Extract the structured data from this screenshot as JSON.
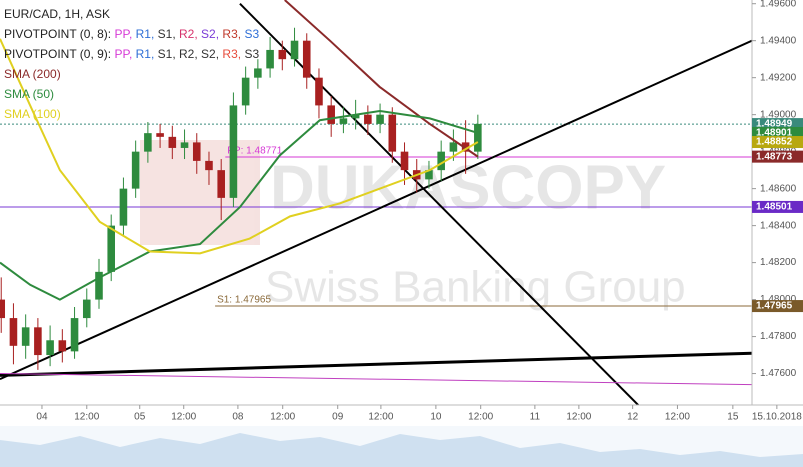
{
  "chart_data": {
    "type": "candlestick",
    "title": "EUR/CAD, 1H, ASK",
    "pivot_legends": [
      {
        "label": "PIVOTPOINT (0, 8):",
        "items": [
          {
            "text": "PP,",
            "color": "#d63ad6"
          },
          {
            "text": "R1,",
            "color": "#2f6fd6"
          },
          {
            "text": "S1,",
            "color": "#333333"
          },
          {
            "text": "R2,",
            "color": "#d6336c"
          },
          {
            "text": "S2,",
            "color": "#7a3ad6"
          },
          {
            "text": "R3,",
            "color": "#c0392b"
          },
          {
            "text": "S3",
            "color": "#2f6fd6"
          }
        ]
      },
      {
        "label": "PIVOTPOINT (0, 9):",
        "items": [
          {
            "text": "PP,",
            "color": "#d63ad6"
          },
          {
            "text": "R1,",
            "color": "#2f6fd6"
          },
          {
            "text": "S1,",
            "color": "#333333"
          },
          {
            "text": "R2,",
            "color": "#333333"
          },
          {
            "text": "S2,",
            "color": "#333333"
          },
          {
            "text": "R3,",
            "color": "#e74c3c"
          },
          {
            "text": "S3",
            "color": "#333333"
          }
        ]
      }
    ],
    "watermark": {
      "brand": "DUKASCOPY",
      "tagline": "Swiss Banking Group"
    },
    "xlim": [
      -10.3,
      174.3
    ],
    "ylim": [
      1.4743,
      1.4962
    ],
    "xticks": [
      {
        "value": 0,
        "label": "04"
      },
      {
        "value": 11,
        "label": "12:00"
      },
      {
        "value": 24,
        "label": "05"
      },
      {
        "value": 34.8,
        "label": "12:00"
      },
      {
        "value": 48.1,
        "label": "08"
      },
      {
        "value": 59.1,
        "label": "12:00"
      },
      {
        "value": 72.6,
        "label": "09"
      },
      {
        "value": 83.2,
        "label": "12:00"
      },
      {
        "value": 96.7,
        "label": "10"
      },
      {
        "value": 107.7,
        "label": "12:00"
      },
      {
        "value": 121,
        "label": "11"
      },
      {
        "value": 131.8,
        "label": "12:00"
      },
      {
        "value": 145,
        "label": "12"
      },
      {
        "value": 156,
        "label": "12:00"
      },
      {
        "value": 169.6,
        "label": "15"
      },
      {
        "value": 180.4,
        "label": "15.10.2018"
      }
    ],
    "yticks": [
      {
        "value": 1.496,
        "label": "1.49600"
      },
      {
        "value": 1.494,
        "label": "1.49400"
      },
      {
        "value": 1.492,
        "label": "1.49200"
      },
      {
        "value": 1.49,
        "label": "1.49000"
      },
      {
        "value": 1.488,
        "label": "1.48800"
      },
      {
        "value": 1.486,
        "label": "1.48600"
      },
      {
        "value": 1.484,
        "label": "1.48400"
      },
      {
        "value": 1.482,
        "label": "1.48200"
      },
      {
        "value": 1.48,
        "label": "1.48000"
      },
      {
        "value": 1.478,
        "label": "1.47800"
      },
      {
        "value": 1.476,
        "label": "1.47600"
      }
    ],
    "grid": false,
    "up_color": "#2e8b3e",
    "down_color": "#a82020",
    "candles": {
      "x": [
        -10,
        -7,
        -4,
        -1,
        2,
        5,
        8,
        11,
        14,
        17,
        20,
        23,
        26,
        29,
        32,
        35,
        38,
        41,
        44,
        47,
        50,
        53,
        56,
        59,
        62,
        65,
        68,
        71,
        74,
        77,
        80,
        83,
        86,
        89,
        92,
        95,
        98,
        101,
        104,
        107
      ],
      "open": [
        1.48,
        1.479,
        1.4775,
        1.4785,
        1.477,
        1.4778,
        1.4772,
        1.479,
        1.48,
        1.4815,
        1.484,
        1.486,
        1.488,
        1.489,
        1.4888,
        1.4882,
        1.4885,
        1.4875,
        1.487,
        1.4855,
        1.4905,
        1.492,
        1.4925,
        1.4935,
        1.493,
        1.494,
        1.492,
        1.4905,
        1.4895,
        1.4898,
        1.49,
        1.4895,
        1.49,
        1.488,
        1.487,
        1.4865,
        1.487,
        1.488,
        1.4885,
        1.488
      ],
      "high": [
        1.4812,
        1.4798,
        1.4792,
        1.479,
        1.4786,
        1.4784,
        1.4796,
        1.4806,
        1.4822,
        1.4846,
        1.4866,
        1.4886,
        1.4896,
        1.4895,
        1.4894,
        1.4892,
        1.489,
        1.488,
        1.4876,
        1.4912,
        1.4926,
        1.493,
        1.4942,
        1.494,
        1.4947,
        1.4944,
        1.4925,
        1.491,
        1.4904,
        1.4908,
        1.4905,
        1.4906,
        1.4904,
        1.4885,
        1.4876,
        1.4875,
        1.4886,
        1.4892,
        1.4897,
        1.49
      ],
      "low": [
        1.4782,
        1.4765,
        1.4768,
        1.4762,
        1.4764,
        1.4766,
        1.4768,
        1.4785,
        1.4795,
        1.481,
        1.4835,
        1.4855,
        1.4874,
        1.4882,
        1.4876,
        1.4876,
        1.4868,
        1.4862,
        1.4843,
        1.485,
        1.49,
        1.4914,
        1.492,
        1.4924,
        1.4926,
        1.4914,
        1.4898,
        1.4888,
        1.489,
        1.4892,
        1.4889,
        1.489,
        1.4874,
        1.4862,
        1.4858,
        1.486,
        1.4864,
        1.4875,
        1.4868,
        1.4876
      ],
      "close": [
        1.479,
        1.4775,
        1.4785,
        1.477,
        1.4778,
        1.4772,
        1.479,
        1.48,
        1.4815,
        1.484,
        1.486,
        1.488,
        1.489,
        1.4888,
        1.4882,
        1.4885,
        1.4875,
        1.487,
        1.4855,
        1.4905,
        1.492,
        1.4925,
        1.4935,
        1.493,
        1.494,
        1.492,
        1.4905,
        1.4895,
        1.4898,
        1.49,
        1.4895,
        1.49,
        1.488,
        1.487,
        1.4865,
        1.487,
        1.488,
        1.4885,
        1.488,
        1.4895
      ]
    },
    "series": [
      {
        "name": "SMA (200)",
        "color": "#8b2a2a",
        "x": [
          59.6,
          70.7,
          82.9,
          95.2,
          107
        ],
        "values": [
          1.4962,
          1.494,
          1.4915,
          1.4895,
          1.48773
        ]
      },
      {
        "name": "SMA (50)",
        "color": "#2e8b3e",
        "x": [
          -10.3,
          -2.9,
          4.4,
          14.2,
          26.5,
          38.8,
          48.6,
          58.4,
          68.2,
          82.9,
          95.2,
          107
        ],
        "values": [
          1.482,
          1.4808,
          1.48,
          1.4812,
          1.4826,
          1.483,
          1.485,
          1.4878,
          1.4897,
          1.4902,
          1.4898,
          1.48901
        ]
      },
      {
        "name": "SMA (100)",
        "color": "#e0d020",
        "x": [
          -10.3,
          -2.9,
          4.4,
          14.2,
          26.5,
          38.8,
          51,
          60.9,
          73.1,
          82.9,
          95.2,
          107
        ],
        "values": [
          1.4941,
          1.4905,
          1.487,
          1.4842,
          1.4826,
          1.4825,
          1.4833,
          1.4845,
          1.4852,
          1.486,
          1.487,
          1.48852
        ]
      }
    ],
    "trend_lines": [
      {
        "color": "#000000",
        "width": 2,
        "x": [
          -10.3,
          174.3
        ],
        "values": [
          1.4757,
          1.494
        ]
      },
      {
        "color": "#000000",
        "width": 2,
        "x": [
          48.6,
          146.8
        ],
        "values": [
          1.496,
          1.4742
        ]
      },
      {
        "color": "#000000",
        "width": 3,
        "x": [
          -10.3,
          174.3
        ],
        "values": [
          1.4759,
          1.4771
        ]
      },
      {
        "color": "#c040c0",
        "width": 1,
        "x": [
          -10.3,
          174.3
        ],
        "values": [
          1.476,
          1.4754
        ]
      }
    ],
    "levels": [
      {
        "value": 1.48949,
        "color": "#3a8a7c",
        "dash": true,
        "x_start": -10.3
      },
      {
        "value": 1.48771,
        "label": "PP: 1.48771",
        "color": "#d63ad6",
        "x_start": 45
      },
      {
        "value": 1.48501,
        "color": "#7a3ad6",
        "x_start": -10.3
      },
      {
        "value": 1.47965,
        "label": "S1: 1.47965",
        "color": "#8b6a3a",
        "x_start": 42.5
      }
    ],
    "price_labels": [
      {
        "value": 1.48949,
        "label": "1.48949",
        "color": "#3a8a7c"
      },
      {
        "value": 1.48901,
        "label": "1.48901",
        "color": "#2e8b3e"
      },
      {
        "value": 1.48852,
        "label": "1.48852",
        "color": "#b8a810"
      },
      {
        "value": 1.48773,
        "label": "1.48773",
        "color": "#8b2a2a"
      },
      {
        "value": 1.48501,
        "label": "1.48501",
        "color": "#6a2ac6"
      },
      {
        "value": 1.47965,
        "label": "1.47965",
        "color": "#7a5a2a"
      }
    ]
  }
}
